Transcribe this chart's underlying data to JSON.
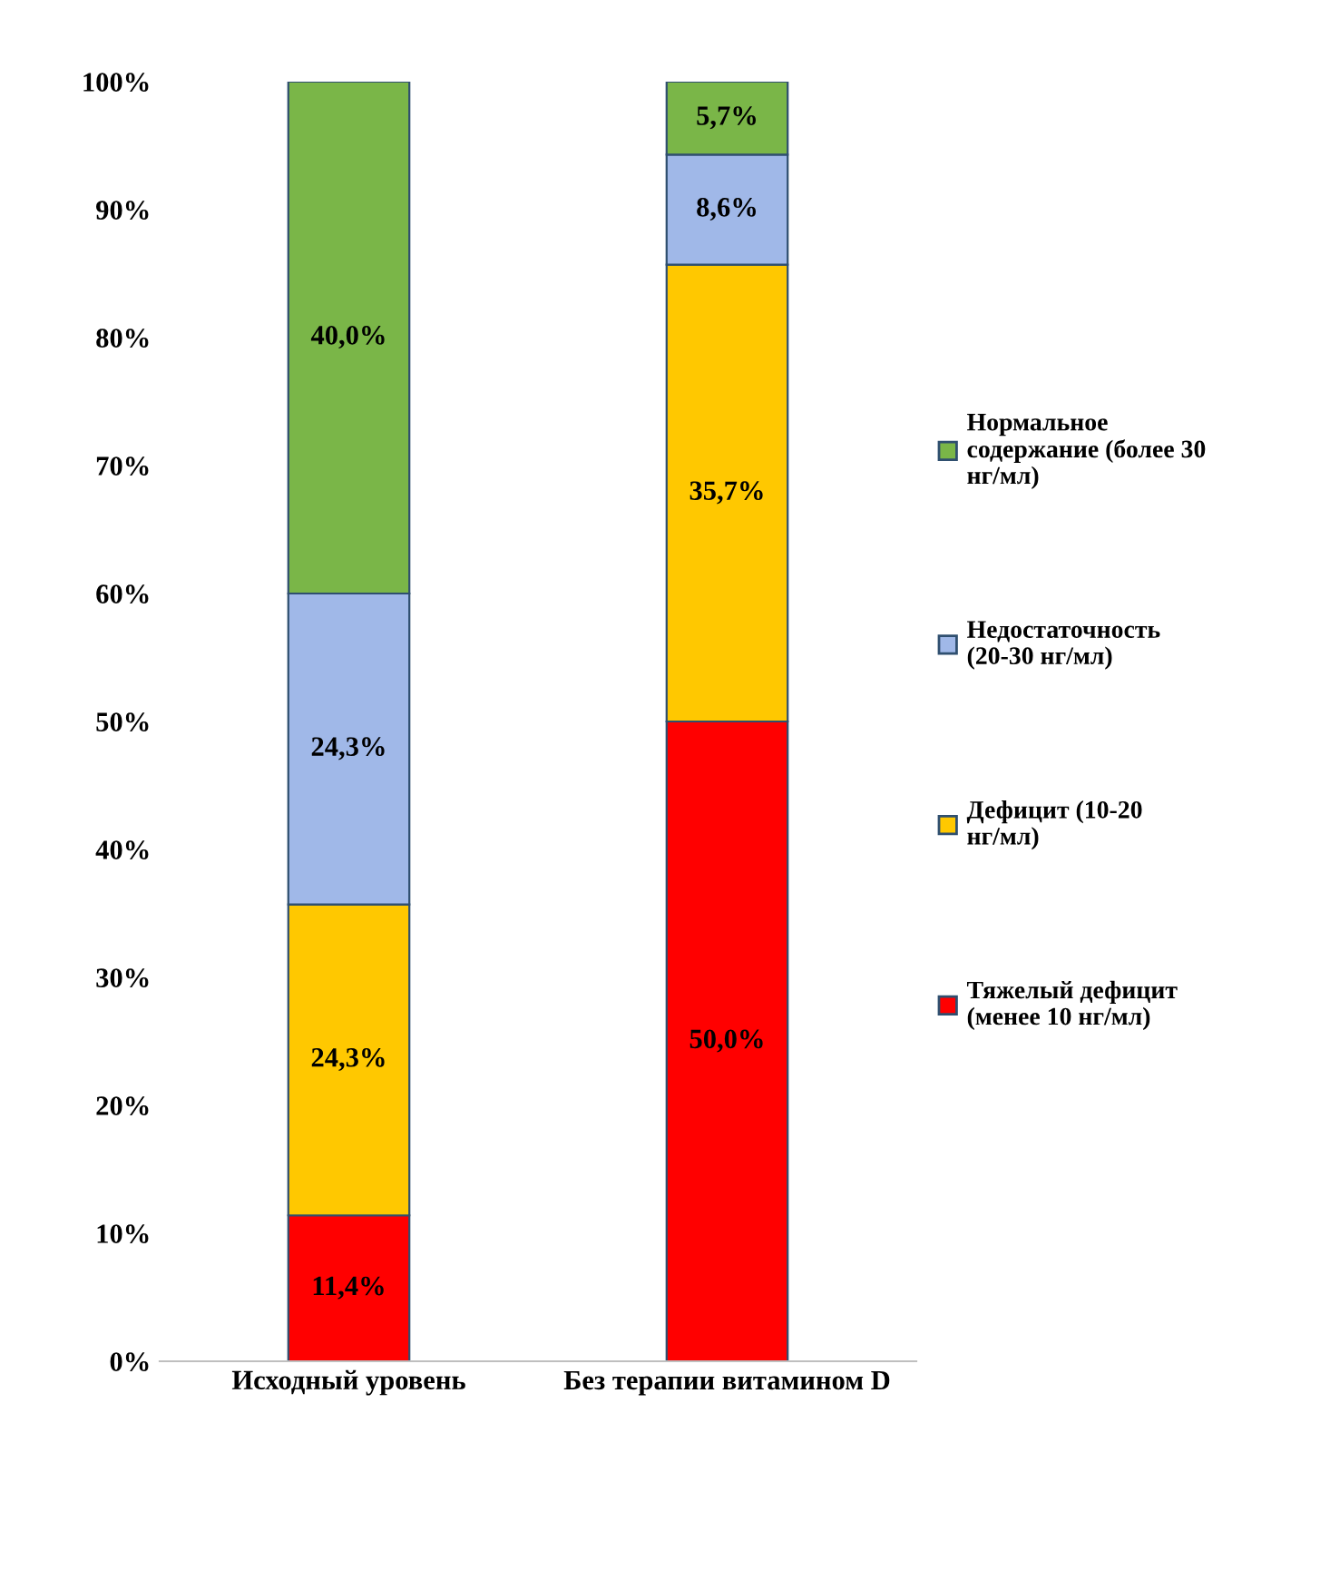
{
  "chart_data": {
    "type": "bar",
    "stacked": true,
    "categories": [
      "Исходный уровень",
      "Без терапии витамином D"
    ],
    "series": [
      {
        "name": "Тяжелый дефицит (менее 10 нг/мл)",
        "color": "#ff0000",
        "values": [
          11.4,
          50.0
        ],
        "value_labels": [
          "11,4%",
          "50,0%"
        ]
      },
      {
        "name": "Дефицит (10-20 нг/мл)",
        "color": "#ffc800",
        "values": [
          24.3,
          35.7
        ],
        "value_labels": [
          "24,3%",
          "35,7%"
        ]
      },
      {
        "name": "Недостаточность (20-30 нг/мл)",
        "color": "#a0b8e8",
        "values": [
          24.3,
          8.6
        ],
        "value_labels": [
          "24,3%",
          "8,6%"
        ]
      },
      {
        "name": "Нормальное содержание (более 30 нг/мл)",
        "color": "#7ab648",
        "values": [
          40.0,
          5.7
        ],
        "value_labels": [
          "40,0%",
          "5,7%"
        ]
      }
    ],
    "ylim": [
      0,
      100
    ],
    "yticks": [
      {
        "value": 0,
        "label": "0%"
      },
      {
        "value": 10,
        "label": "10%"
      },
      {
        "value": 20,
        "label": "20%"
      },
      {
        "value": 30,
        "label": "30%"
      },
      {
        "value": 40,
        "label": "40%"
      },
      {
        "value": 50,
        "label": "50%"
      },
      {
        "value": 60,
        "label": "60%"
      },
      {
        "value": 70,
        "label": "70%"
      },
      {
        "value": 80,
        "label": "80%"
      },
      {
        "value": 90,
        "label": "90%"
      },
      {
        "value": 100,
        "label": "100%"
      }
    ],
    "grid": false,
    "legend": "right"
  }
}
